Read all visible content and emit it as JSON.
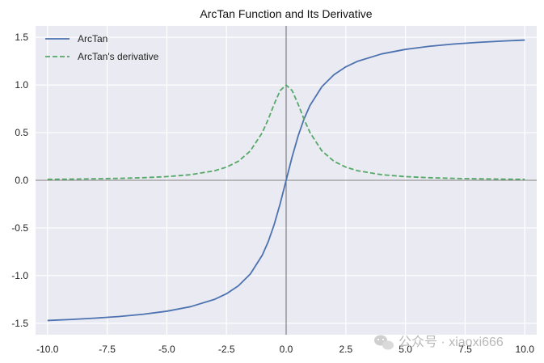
{
  "chart_data": {
    "type": "line",
    "title": "ArcTan Function and Its Derivative",
    "xlabel": "",
    "ylabel": "",
    "xlim": [
      -10.5,
      10.5
    ],
    "ylim": [
      -1.62,
      1.62
    ],
    "x_ticks": [
      -10.0,
      -7.5,
      -5.0,
      -2.5,
      0.0,
      2.5,
      5.0,
      7.5,
      10.0
    ],
    "x_tick_labels": [
      "-10.0",
      "-7.5",
      "-5.0",
      "-2.5",
      "0.0",
      "2.5",
      "5.0",
      "7.5",
      "10.0"
    ],
    "y_ticks": [
      1.5,
      1.0,
      0.5,
      0.0,
      -0.5,
      -1.0,
      -1.5
    ],
    "y_tick_labels": [
      "1.5",
      "1.0",
      "0.5",
      "0.0",
      "-0.5",
      "-1.0",
      "-1.5"
    ],
    "grid": true,
    "axis_lines_at_origin": true,
    "legend_position": "top-left",
    "x": [
      -10,
      -9,
      -8,
      -7,
      -6,
      -5,
      -4,
      -3,
      -2.5,
      -2,
      -1.5,
      -1,
      -0.75,
      -0.5,
      -0.25,
      0,
      0.25,
      0.5,
      0.75,
      1,
      1.5,
      2,
      2.5,
      3,
      4,
      5,
      6,
      7,
      8,
      9,
      10
    ],
    "series": [
      {
        "name": "ArcTan",
        "style": "solid",
        "color": "#4c72b0",
        "values": [
          -1.4711,
          -1.4601,
          -1.4464,
          -1.4289,
          -1.4056,
          -1.3734,
          -1.3258,
          -1.249,
          -1.1903,
          -1.1071,
          -0.9828,
          -0.7854,
          -0.6435,
          -0.4636,
          -0.245,
          0.0,
          0.245,
          0.4636,
          0.6435,
          0.7854,
          0.9828,
          1.1071,
          1.1903,
          1.249,
          1.3258,
          1.3734,
          1.4056,
          1.4289,
          1.4464,
          1.4601,
          1.4711
        ]
      },
      {
        "name": "ArcTan's derivative",
        "style": "dashed",
        "color": "#55a868",
        "values": [
          0.0099,
          0.0122,
          0.0154,
          0.02,
          0.027,
          0.0385,
          0.0588,
          0.1,
          0.1379,
          0.2,
          0.3077,
          0.5,
          0.64,
          0.8,
          0.9412,
          1.0,
          0.9412,
          0.8,
          0.64,
          0.5,
          0.3077,
          0.2,
          0.1379,
          0.1,
          0.0588,
          0.0385,
          0.027,
          0.02,
          0.0154,
          0.0122,
          0.0099
        ]
      }
    ]
  },
  "watermark": {
    "text": "公众号 · xiaoxi666",
    "icon": "wechat-icon"
  },
  "colors": {
    "plot_background": "#eaeaf2",
    "grid": "#ffffff",
    "axis_lines": "#000000"
  }
}
